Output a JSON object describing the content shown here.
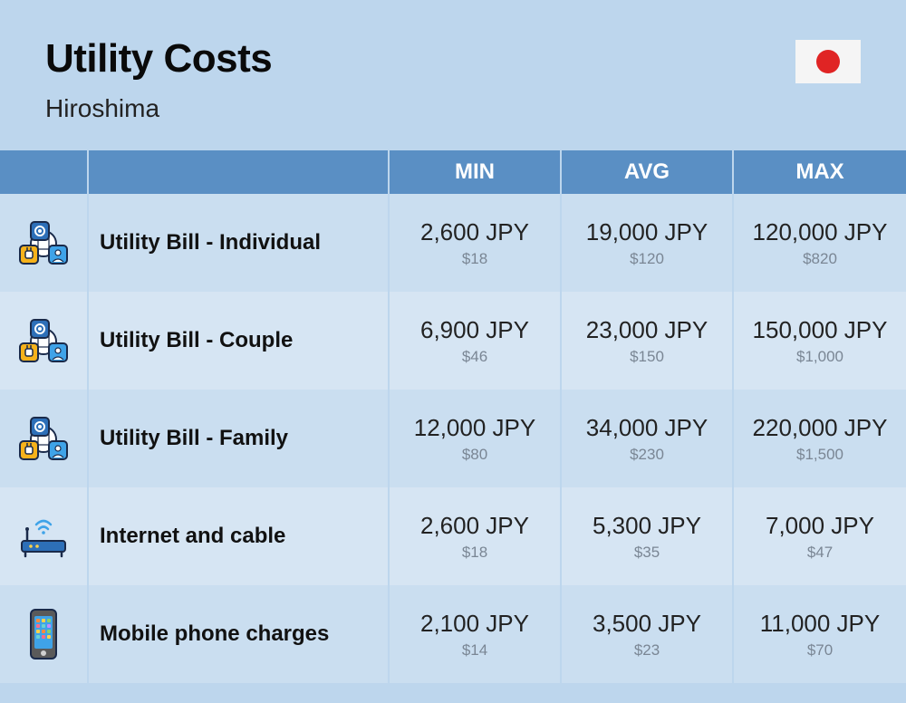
{
  "header": {
    "title": "Utility Costs",
    "subtitle": "Hiroshima",
    "flag": {
      "bg": "#f5f5f5",
      "dot": "#e02424"
    }
  },
  "columns": {
    "min": "MIN",
    "avg": "AVG",
    "max": "MAX"
  },
  "rows": [
    {
      "label": "Utility Bill - Individual",
      "icon": "utility",
      "min_jpy": "2,600 JPY",
      "min_usd": "$18",
      "avg_jpy": "19,000 JPY",
      "avg_usd": "$120",
      "max_jpy": "120,000 JPY",
      "max_usd": "$820"
    },
    {
      "label": "Utility Bill - Couple",
      "icon": "utility",
      "min_jpy": "6,900 JPY",
      "min_usd": "$46",
      "avg_jpy": "23,000 JPY",
      "avg_usd": "$150",
      "max_jpy": "150,000 JPY",
      "max_usd": "$1,000"
    },
    {
      "label": "Utility Bill - Family",
      "icon": "utility",
      "min_jpy": "12,000 JPY",
      "min_usd": "$80",
      "avg_jpy": "34,000 JPY",
      "avg_usd": "$230",
      "max_jpy": "220,000 JPY",
      "max_usd": "$1,500"
    },
    {
      "label": "Internet and cable",
      "icon": "router",
      "min_jpy": "2,600 JPY",
      "min_usd": "$18",
      "avg_jpy": "5,300 JPY",
      "avg_usd": "$35",
      "max_jpy": "7,000 JPY",
      "max_usd": "$47"
    },
    {
      "label": "Mobile phone charges",
      "icon": "phone",
      "min_jpy": "2,100 JPY",
      "min_usd": "$14",
      "avg_jpy": "3,500 JPY",
      "avg_usd": "$23",
      "max_jpy": "11,000 JPY",
      "max_usd": "$70"
    }
  ],
  "style": {
    "page_bg": "#bdd6ed",
    "header_bg": "#5a8fc4",
    "row_odd": "#cadef0",
    "row_even": "#d6e5f3",
    "grid_border": "#bdd6ed",
    "title_color": "#0a0a0a",
    "usd_color": "#7a8694",
    "title_fontsize": 44,
    "subtitle_fontsize": 28,
    "header_fontsize": 24,
    "label_fontsize": 24,
    "jpy_fontsize": 26,
    "usd_fontsize": 17,
    "icon_colors": {
      "gear_box": "#2d6fb8",
      "plug_box": "#f6b21b",
      "person_box": "#3fa3e8",
      "outline": "#1a2a4a",
      "router": "#2d6fb8",
      "phone_body": "#5a5a5a",
      "phone_screen": "#3fa3e8"
    }
  }
}
